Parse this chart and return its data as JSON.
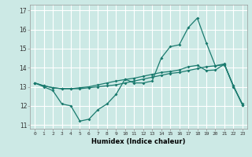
{
  "title": "",
  "xlabel": "Humidex (Indice chaleur)",
  "xlim": [
    -0.5,
    23.5
  ],
  "ylim": [
    10.8,
    17.3
  ],
  "yticks": [
    11,
    12,
    13,
    14,
    15,
    16,
    17
  ],
  "xticks": [
    0,
    1,
    2,
    3,
    4,
    5,
    6,
    7,
    8,
    9,
    10,
    11,
    12,
    13,
    14,
    15,
    16,
    17,
    18,
    19,
    20,
    21,
    22,
    23
  ],
  "bg_color": "#cce9e5",
  "grid_color": "#ffffff",
  "line_color": "#1a7a6e",
  "line1_y": [
    13.2,
    13.0,
    12.8,
    12.1,
    12.0,
    11.2,
    11.3,
    11.8,
    12.1,
    12.6,
    13.4,
    13.2,
    13.2,
    13.3,
    14.5,
    15.1,
    15.2,
    16.1,
    16.6,
    15.3,
    14.1,
    14.2,
    13.0,
    12.1
  ],
  "line2_y": [
    13.2,
    13.05,
    12.95,
    12.9,
    12.9,
    12.9,
    12.95,
    13.0,
    13.05,
    13.1,
    13.2,
    13.3,
    13.4,
    13.5,
    13.6,
    13.7,
    13.75,
    13.85,
    13.95,
    14.05,
    14.1,
    14.15,
    13.05,
    12.05
  ],
  "line3_y": [
    13.2,
    13.05,
    12.95,
    12.9,
    12.9,
    12.95,
    13.0,
    13.1,
    13.2,
    13.3,
    13.38,
    13.45,
    13.55,
    13.65,
    13.75,
    13.8,
    13.88,
    14.05,
    14.12,
    13.85,
    13.88,
    14.18,
    13.05,
    12.05
  ]
}
